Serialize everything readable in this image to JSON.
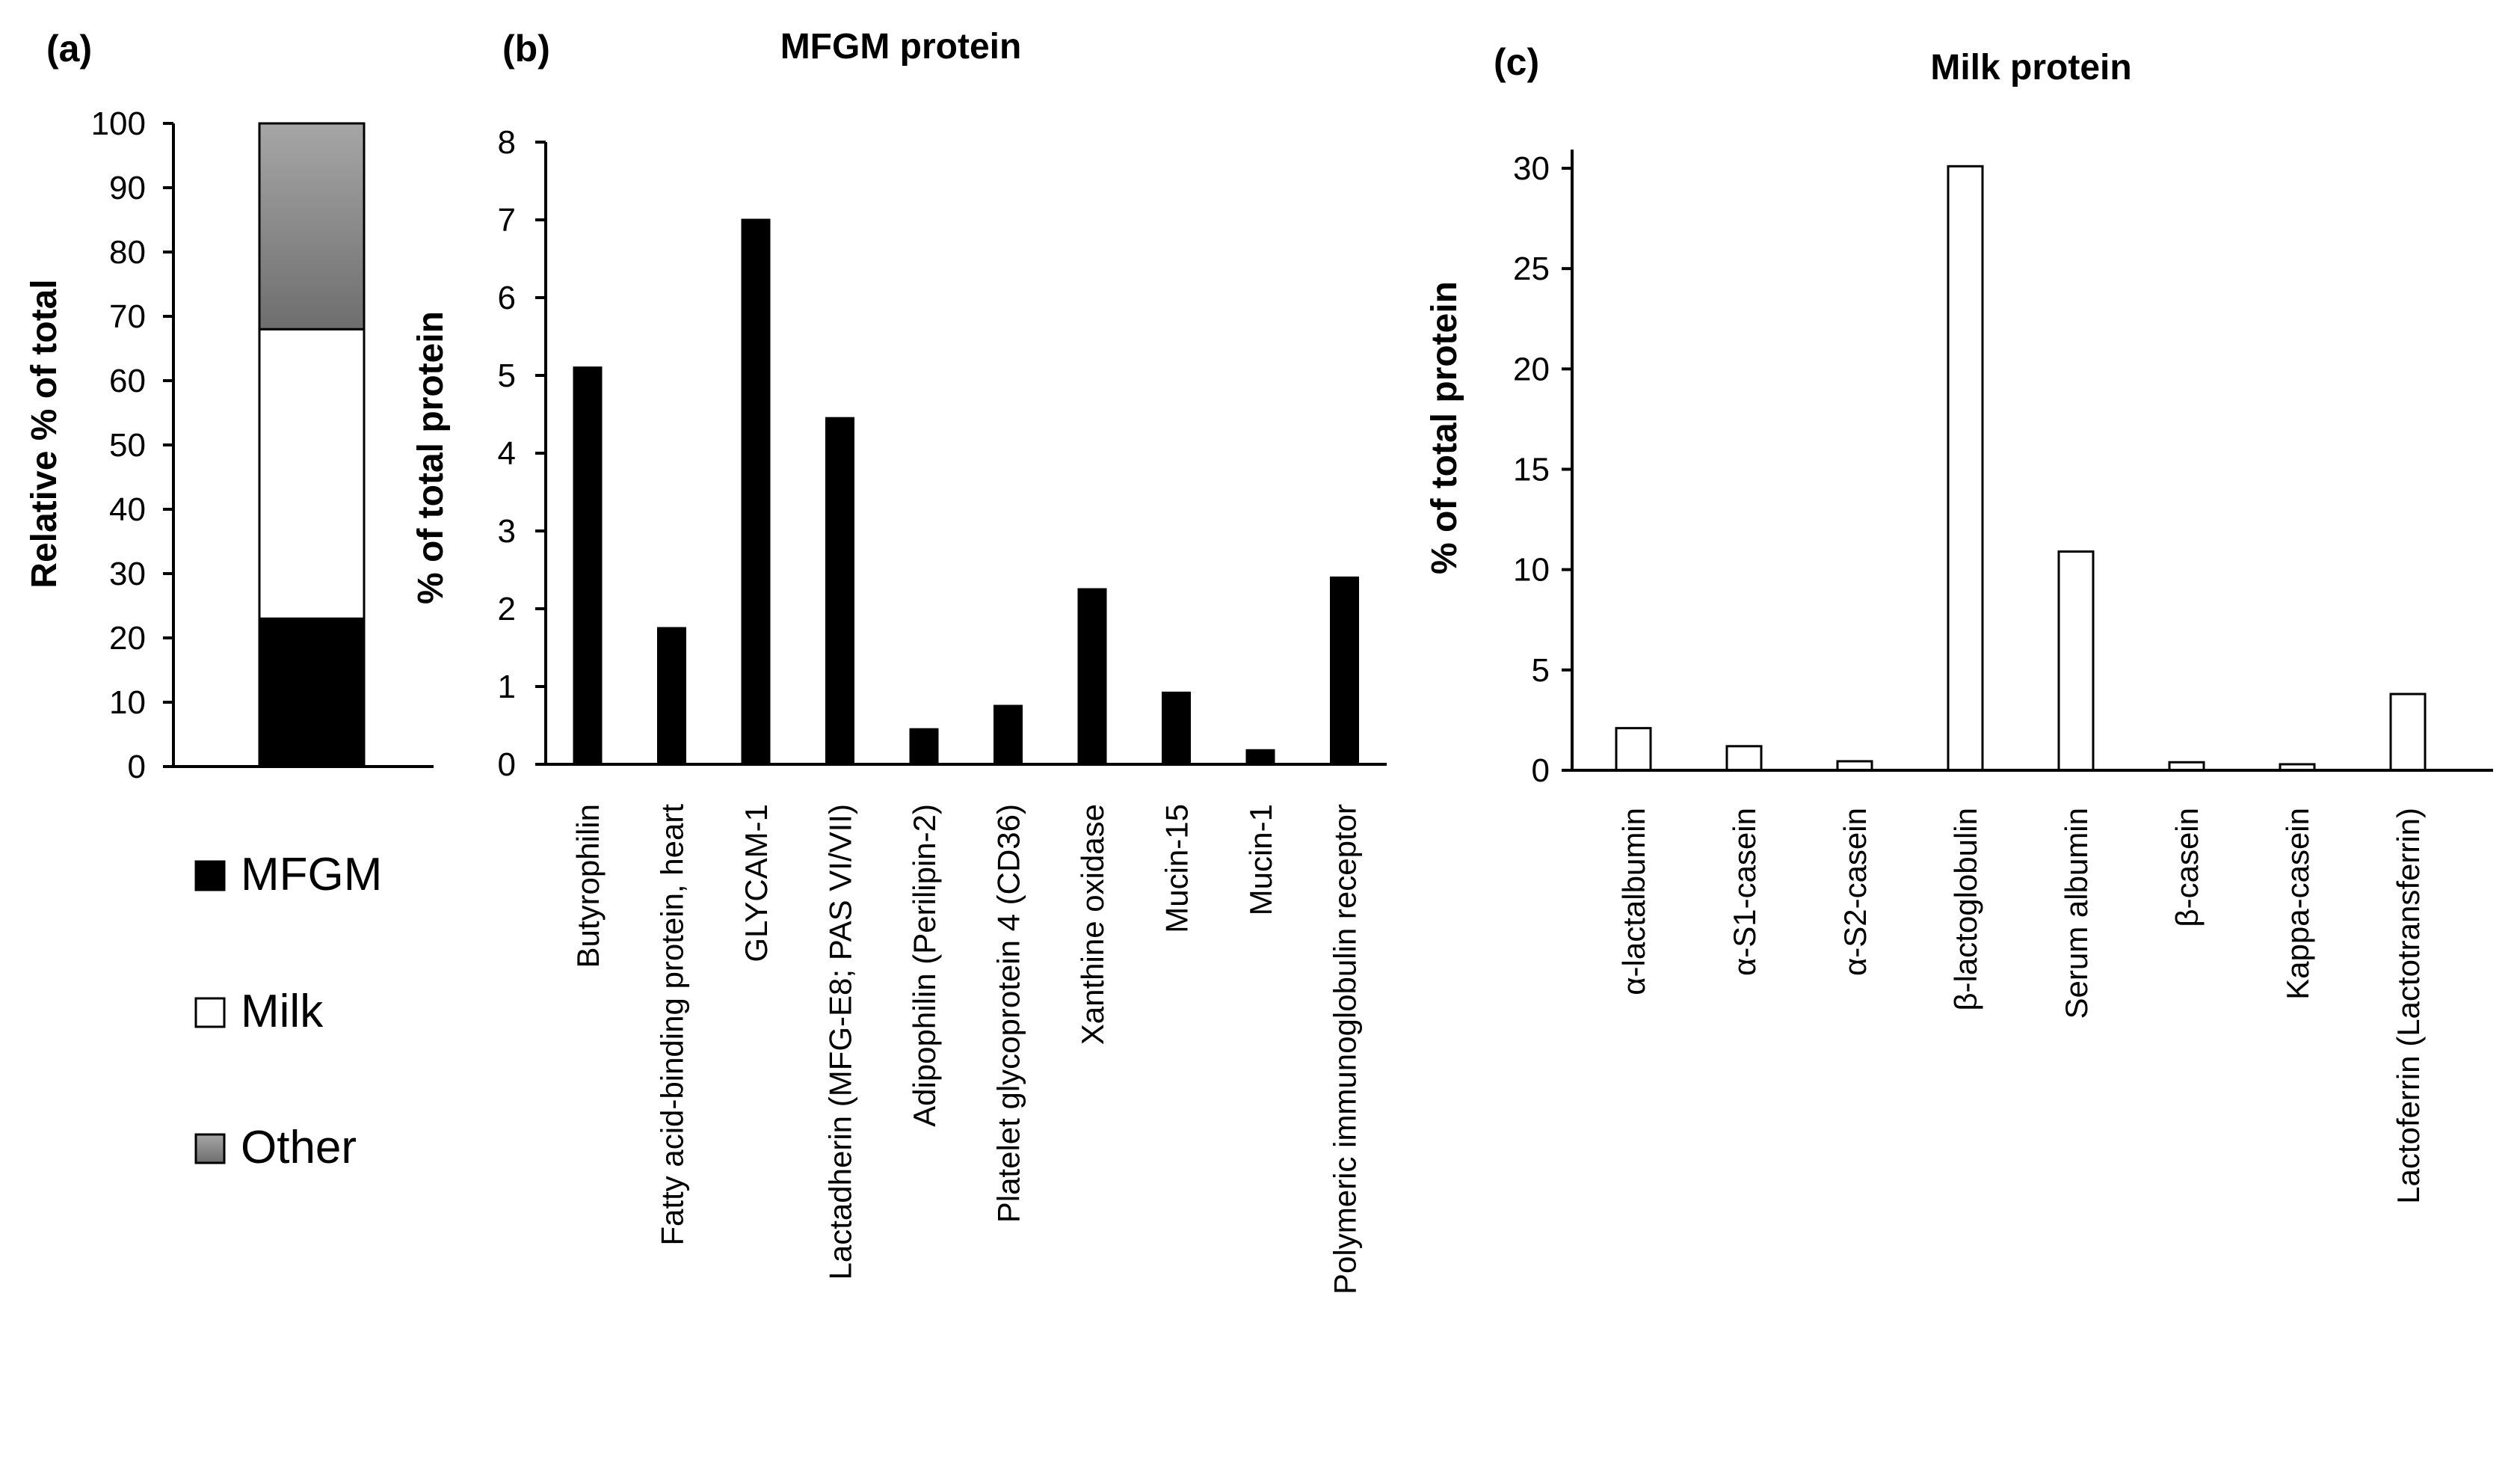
{
  "chart_data": [
    {
      "panel": "(a)",
      "type": "bar",
      "stacked": true,
      "title": "",
      "ylabel": "Relative % of total",
      "xlabel": "",
      "ylim": [
        0,
        100
      ],
      "yticks": [
        0,
        10,
        20,
        30,
        40,
        50,
        60,
        70,
        80,
        90,
        100
      ],
      "categories": [
        ""
      ],
      "series": [
        {
          "name": "MFGM",
          "values": [
            23
          ],
          "color": "#000000"
        },
        {
          "name": "Milk",
          "values": [
            45
          ],
          "color": "#ffffff"
        },
        {
          "name": "Other",
          "values": [
            32
          ],
          "color": "#8c8c8c"
        }
      ],
      "legend_position": "below"
    },
    {
      "panel": "(b)",
      "type": "bar",
      "title": "MFGM protein",
      "ylabel": "% of total protein",
      "xlabel": "",
      "ylim": [
        0,
        8
      ],
      "yticks": [
        0,
        1,
        2,
        3,
        4,
        5,
        6,
        7,
        8
      ],
      "categories": [
        "Butyrophilin",
        "Fatty acid-binding protein, heart",
        "GLYCAM-1",
        "Lactadherin (MFG-E8; PAS VI/VII)",
        "Adipophilin (Perilipin-2)",
        "Platelet glycoprotein 4 (CD36)",
        "Xanthine oxidase",
        "Mucin-15",
        "Mucin-1",
        "Polymeric immunoglobulin receptor"
      ],
      "values": [
        5.1,
        1.75,
        7.0,
        4.45,
        0.45,
        0.75,
        2.25,
        0.92,
        0.18,
        2.4
      ],
      "bar_color": "#000000"
    },
    {
      "panel": "(c)",
      "type": "bar",
      "title": "Milk protein",
      "ylabel": "% of total protein",
      "xlabel": "",
      "ylim": [
        0,
        30
      ],
      "yticks": [
        0,
        5,
        10,
        15,
        20,
        25,
        30
      ],
      "categories": [
        "α-lactalbumin",
        "α-S1-casein",
        "α-S2-casein",
        "β-lactoglobulin",
        "Serum albumin",
        "β-casein",
        "Kappa-casein",
        "Lactoferrin (Lactotransferrin)"
      ],
      "values": [
        2.1,
        1.2,
        0.45,
        30.1,
        10.9,
        0.4,
        0.3,
        3.8
      ],
      "bar_color": "#ffffff"
    }
  ]
}
